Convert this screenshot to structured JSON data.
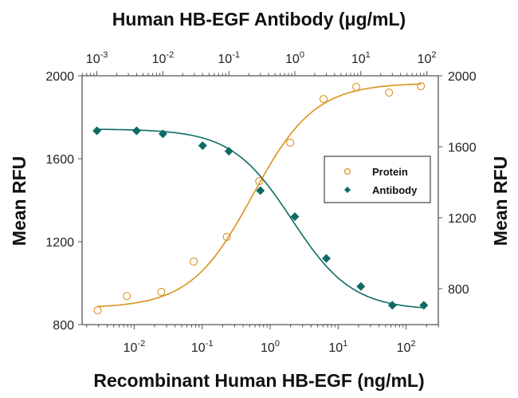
{
  "colors": {
    "protein": "#D9921E",
    "antibody": "#0E6B64",
    "axis": "#555555",
    "text": "#111111"
  },
  "labels": {
    "top_title": "Human HB-EGF Antibody (μg/mL)",
    "bottom_title": "Recombinant Human HB-EGF (ng/mL)",
    "left_ylabel": "Mean RFU",
    "right_ylabel": "Mean RFU"
  },
  "legend": {
    "items": [
      {
        "label": "Protein",
        "marker": "open-circle"
      },
      {
        "label": "Antibody",
        "marker": "filled-diamond"
      }
    ]
  },
  "chart_data": {
    "type": "scatter",
    "title": "",
    "xlabel": "Recombinant Human HB-EGF (ng/mL)",
    "x2label": "Human HB-EGF Antibody (μg/mL)",
    "ylabel": "Mean RFU",
    "y2label": "Mean RFU",
    "xscale": "log",
    "x_ticks": [
      "10^-2",
      "10^-1",
      "10^0",
      "10^1",
      "10^2"
    ],
    "x2_ticks": [
      "10^-3",
      "10^-2",
      "10^-1",
      "10^0",
      "10^1",
      "10^2"
    ],
    "y_ticks": [
      800,
      1200,
      1600,
      2000
    ],
    "y2_ticks": [
      800,
      1200,
      1600,
      2000
    ],
    "ylim": [
      800,
      2000
    ],
    "y2lim": [
      600,
      2000
    ],
    "grid": false,
    "legend_position": "right-center inside plot",
    "series": [
      {
        "name": "Protein",
        "axis": "bottom-x / left-y",
        "marker": "open circle",
        "fit": "sigmoid",
        "x": [
          0.0029,
          0.0078,
          0.025,
          0.075,
          0.23,
          0.69,
          1.97,
          6.1,
          18.5,
          56,
          165
        ],
        "y": [
          869,
          938,
          958,
          1104,
          1223,
          1492,
          1677,
          1888,
          1946,
          1919,
          1950
        ]
      },
      {
        "name": "Antibody",
        "axis": "top-x / right-y",
        "marker": "filled diamond",
        "fit": "sigmoid",
        "x": [
          0.001,
          0.004,
          0.01,
          0.04,
          0.1,
          0.3,
          1.0,
          3.0,
          10,
          30,
          90
        ],
        "y": [
          1690,
          1690,
          1673,
          1606,
          1575,
          1353,
          1206,
          971,
          813,
          707,
          707
        ]
      }
    ]
  }
}
